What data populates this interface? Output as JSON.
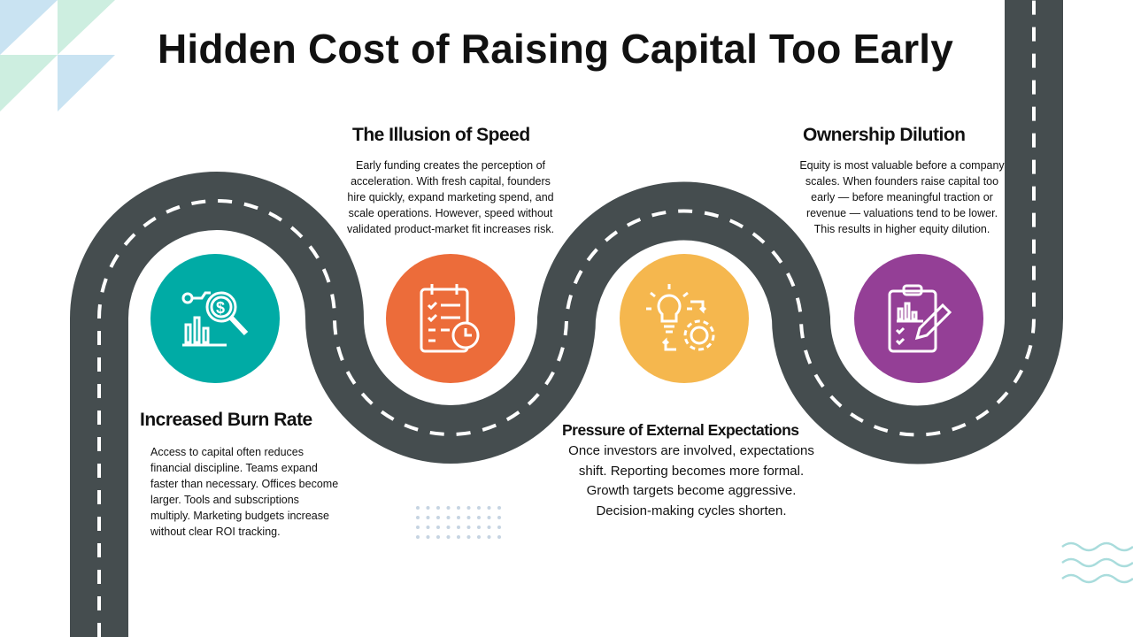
{
  "title": "Hidden Cost of Raising Capital Too Early",
  "colors": {
    "road": "#454d4f",
    "teal": "#00aba5",
    "orange": "#ec6c3a",
    "yellow": "#f5b74e",
    "purple": "#943f96"
  },
  "steps": [
    {
      "heading": "Increased Burn Rate",
      "icon": "financial-analysis-icon",
      "body": "Access to capital often reduces financial discipline. Teams expand faster than necessary. Offices become larger. Tools and subscriptions multiply. Marketing budgets increase without clear ROI tracking."
    },
    {
      "heading": "The Illusion of Speed",
      "icon": "checklist-clock-icon",
      "body": "Early funding creates the perception of acceleration. With fresh capital, founders hire quickly, expand marketing spend, and scale operations. However, speed without validated product-market fit increases risk."
    },
    {
      "heading": "Pressure of External Expectations",
      "icon": "lightbulb-gear-icon",
      "body": "Once investors are involved, expectations shift. Reporting becomes more formal. Growth targets become aggressive. Decision-making cycles shorten."
    },
    {
      "heading": "Ownership Dilution",
      "icon": "clipboard-chart-pencil-icon",
      "body": "Equity is most valuable before a company scales. When founders raise capital too early — before meaningful traction or revenue — valuations tend to be lower. This results in higher equity dilution."
    }
  ]
}
